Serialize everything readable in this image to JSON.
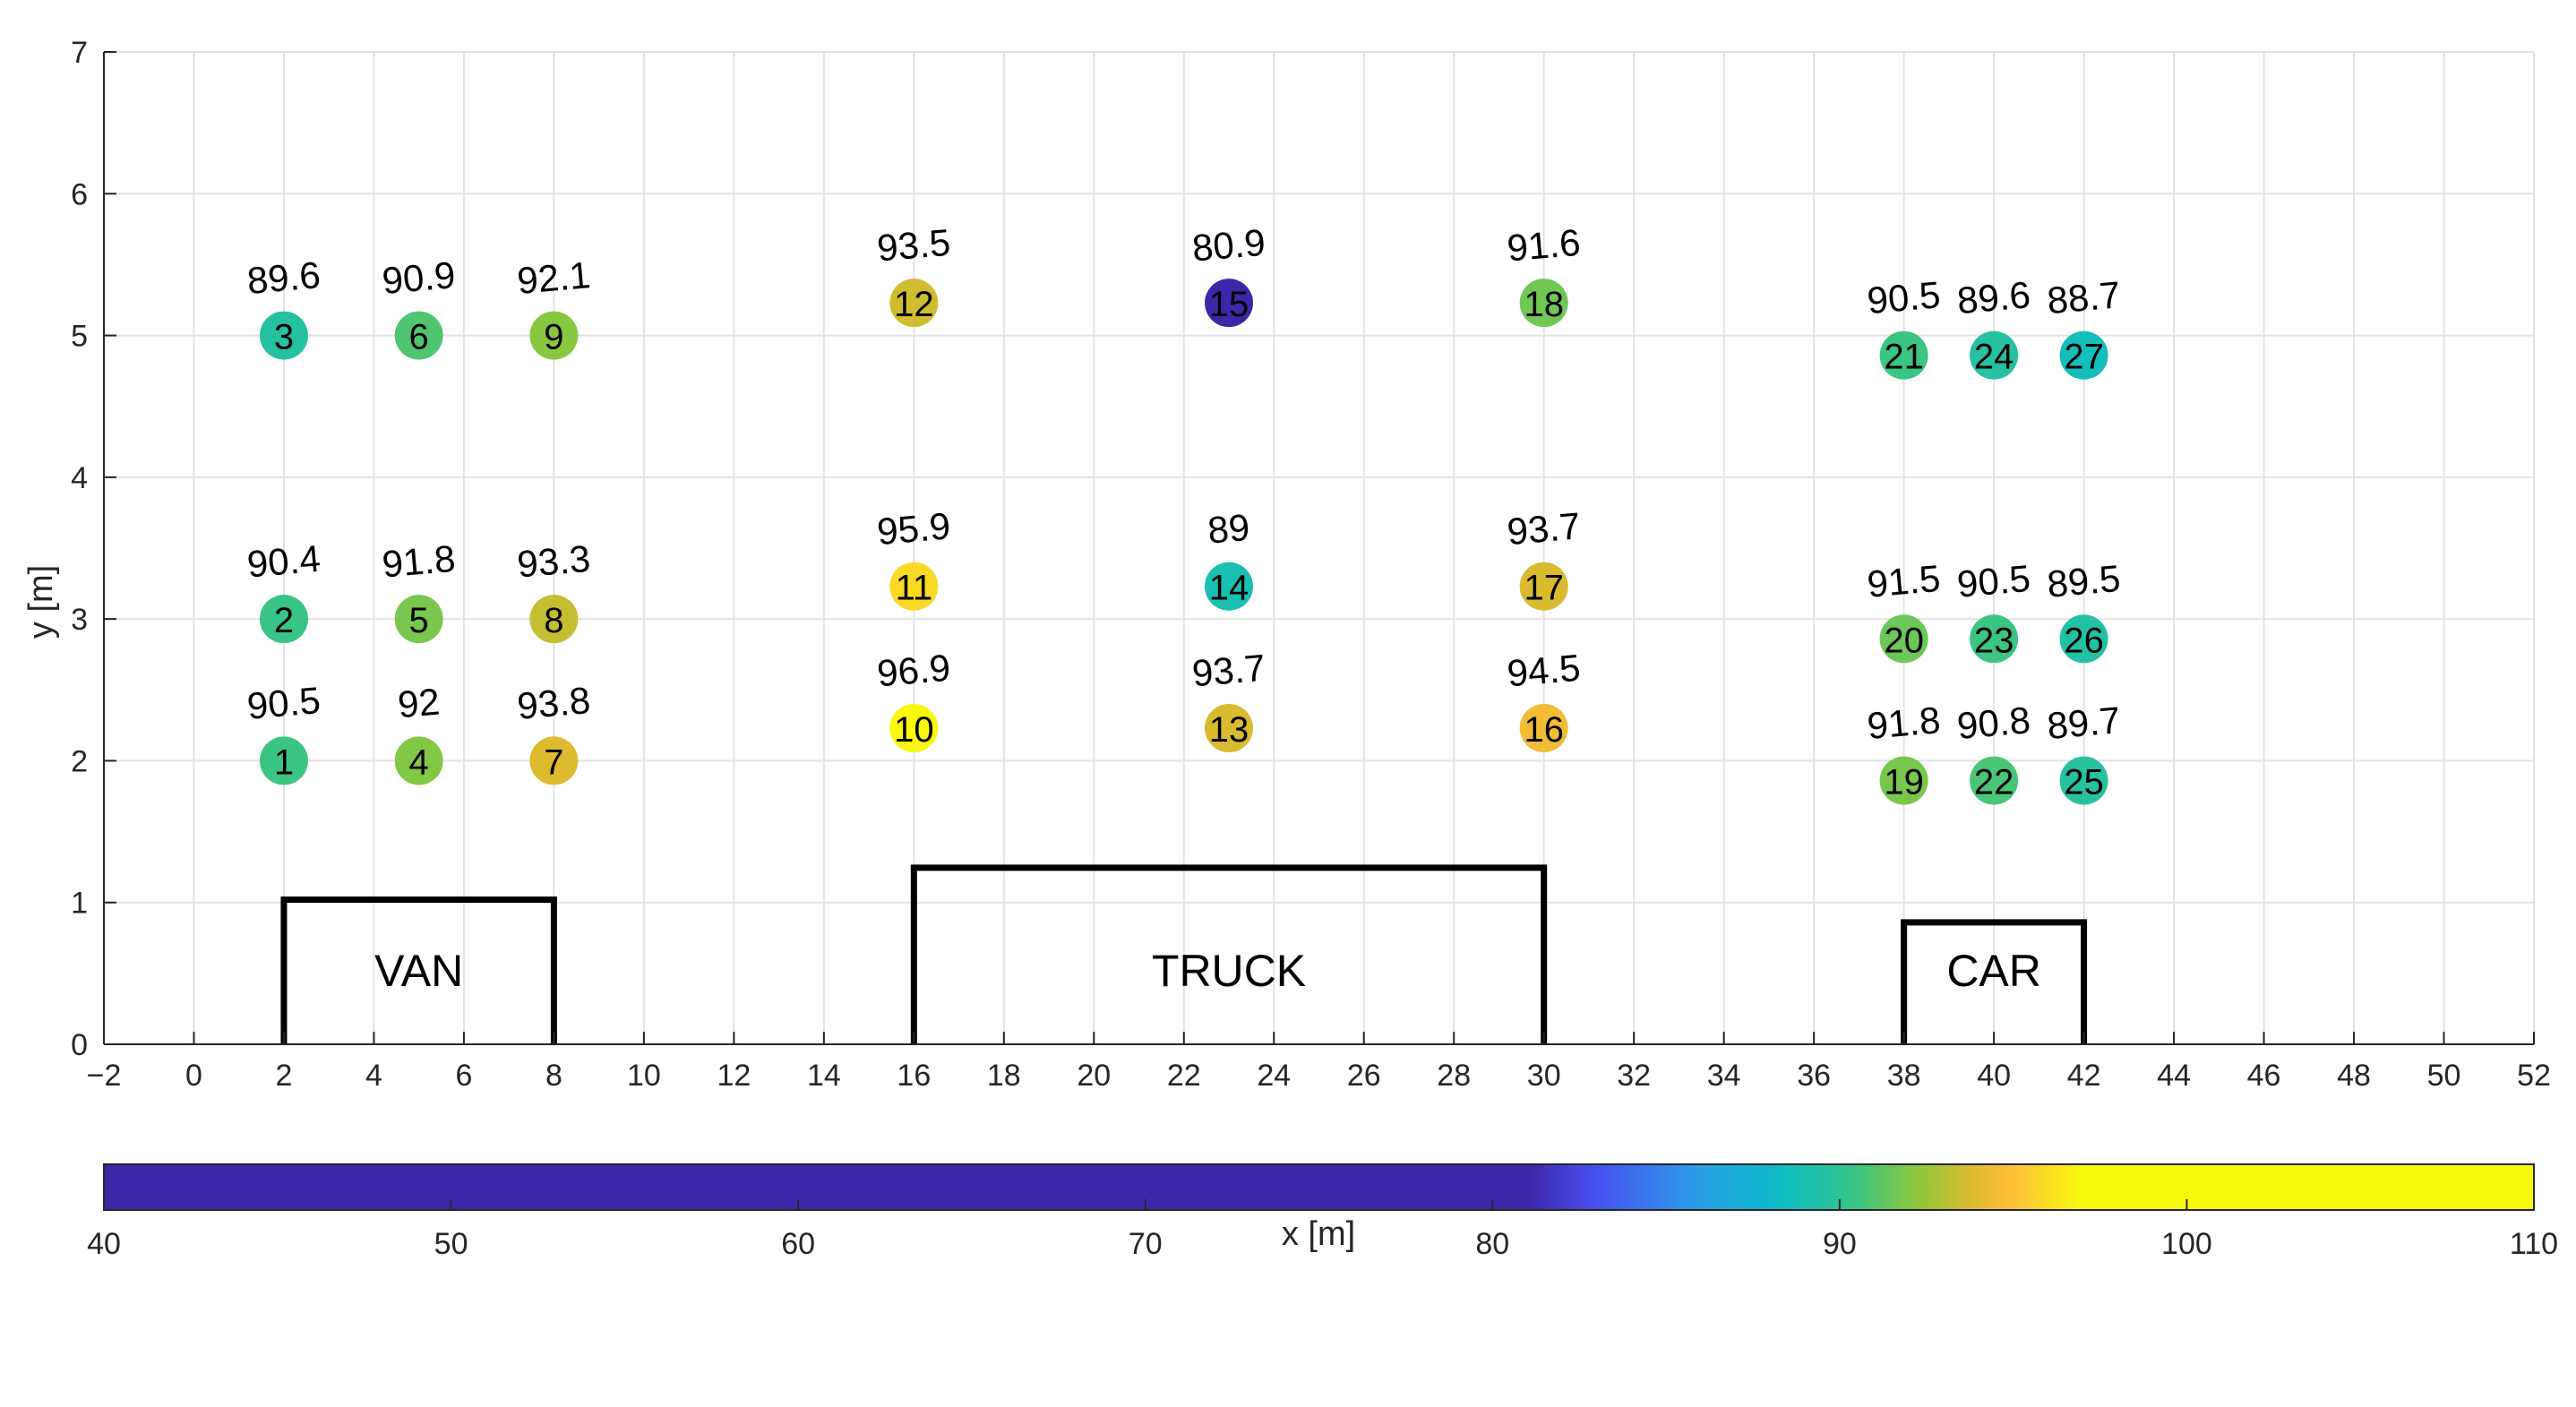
{
  "chart_data": {
    "type": "scatter",
    "xlabel": "x [m]",
    "ylabel": "y [m]",
    "xlim": [
      -2,
      52
    ],
    "ylim": [
      0,
      7
    ],
    "xticks": [
      -2,
      0,
      2,
      4,
      6,
      8,
      10,
      12,
      14,
      16,
      18,
      20,
      22,
      24,
      26,
      28,
      30,
      32,
      34,
      36,
      38,
      40,
      42,
      44,
      46,
      48,
      50,
      52
    ],
    "xtick_labels": [
      "−2",
      "0",
      "2",
      "4",
      "6",
      "8",
      "10",
      "12",
      "14",
      "16",
      "18",
      "20",
      "22",
      "24",
      "26",
      "28",
      "30",
      "32",
      "34",
      "36",
      "38",
      "40",
      "42",
      "44",
      "46",
      "48",
      "50",
      "52"
    ],
    "yticks": [
      0,
      1,
      2,
      3,
      4,
      5,
      6,
      7
    ],
    "grid": true,
    "points": [
      {
        "id": "1",
        "x": 2,
        "y": 2,
        "value": 90.5,
        "label": "90.5"
      },
      {
        "id": "2",
        "x": 2,
        "y": 3,
        "value": 90.4,
        "label": "90.4"
      },
      {
        "id": "3",
        "x": 2,
        "y": 5,
        "value": 89.6,
        "label": "89.6"
      },
      {
        "id": "4",
        "x": 5,
        "y": 2,
        "value": 92,
        "label": "92"
      },
      {
        "id": "5",
        "x": 5,
        "y": 3,
        "value": 91.8,
        "label": "91.8"
      },
      {
        "id": "6",
        "x": 5,
        "y": 5,
        "value": 90.9,
        "label": "90.9"
      },
      {
        "id": "7",
        "x": 8,
        "y": 2,
        "value": 93.8,
        "label": "93.8"
      },
      {
        "id": "8",
        "x": 8,
        "y": 3,
        "value": 93.3,
        "label": "93.3"
      },
      {
        "id": "9",
        "x": 8,
        "y": 5,
        "value": 92.1,
        "label": "92.1"
      },
      {
        "id": "10",
        "x": 16,
        "y": 2.23,
        "value": 96.9,
        "label": "96.9"
      },
      {
        "id": "11",
        "x": 16,
        "y": 3.23,
        "value": 95.9,
        "label": "95.9"
      },
      {
        "id": "12",
        "x": 16,
        "y": 5.23,
        "value": 93.5,
        "label": "93.5"
      },
      {
        "id": "13",
        "x": 23,
        "y": 2.23,
        "value": 93.7,
        "label": "93.7"
      },
      {
        "id": "14",
        "x": 23,
        "y": 3.23,
        "value": 89,
        "label": "89"
      },
      {
        "id": "15",
        "x": 23,
        "y": 5.23,
        "value": 80.9,
        "label": "80.9"
      },
      {
        "id": "16",
        "x": 30,
        "y": 2.23,
        "value": 94.5,
        "label": "94.5"
      },
      {
        "id": "17",
        "x": 30,
        "y": 3.23,
        "value": 93.7,
        "label": "93.7"
      },
      {
        "id": "18",
        "x": 30,
        "y": 5.23,
        "value": 91.6,
        "label": "91.6"
      },
      {
        "id": "19",
        "x": 38,
        "y": 1.86,
        "value": 91.8,
        "label": "91.8"
      },
      {
        "id": "20",
        "x": 38,
        "y": 2.86,
        "value": 91.5,
        "label": "91.5"
      },
      {
        "id": "21",
        "x": 38,
        "y": 4.86,
        "value": 90.5,
        "label": "90.5"
      },
      {
        "id": "22",
        "x": 40,
        "y": 1.86,
        "value": 90.8,
        "label": "90.8"
      },
      {
        "id": "23",
        "x": 40,
        "y": 2.86,
        "value": 90.5,
        "label": "90.5"
      },
      {
        "id": "24",
        "x": 40,
        "y": 4.86,
        "value": 89.6,
        "label": "89.6"
      },
      {
        "id": "25",
        "x": 42,
        "y": 1.86,
        "value": 89.7,
        "label": "89.7"
      },
      {
        "id": "26",
        "x": 42,
        "y": 2.86,
        "value": 89.5,
        "label": "89.5"
      },
      {
        "id": "27",
        "x": 42,
        "y": 4.86,
        "value": 88.7,
        "label": "88.7"
      }
    ],
    "vehicles": [
      {
        "label": "VAN",
        "x0": 2,
        "x1": 8,
        "height": 1.02
      },
      {
        "label": "TRUCK",
        "x0": 16,
        "x1": 30,
        "height": 1.245
      },
      {
        "label": "CAR",
        "x0": 38,
        "x1": 42,
        "height": 0.86
      }
    ],
    "colorbar": {
      "location": "bottom",
      "limits": [
        40,
        110
      ],
      "ticks": [
        40,
        50,
        60,
        70,
        80,
        90,
        100,
        110
      ],
      "tick_labels": [
        "40",
        "50",
        "60",
        "70",
        "80",
        "90",
        "100",
        "110"
      ],
      "colormap_range": [
        81,
        97
      ]
    }
  }
}
